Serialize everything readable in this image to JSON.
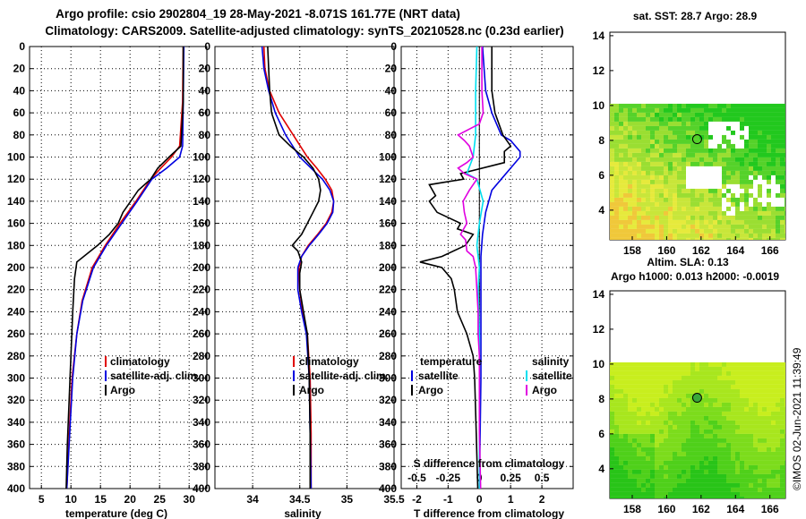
{
  "title": {
    "line1": "Argo profile: csio 2902804_19 28-May-2021 -8.071S 161.77E (NRT data)",
    "line2": "Climatology: CARS2009. Satellite-adjusted climatology: synTS_20210528.nc (0.23d earlier)"
  },
  "colors": {
    "climatology": "#e00000",
    "satellite": "#0000e0",
    "argo": "#000000",
    "sat_salinity": "#00e0f0",
    "argo_salinity": "#e000e0"
  },
  "chart_data": [
    {
      "type": "line",
      "id": "temperature",
      "xlabel": "temperature (deg C)",
      "ylabel": "",
      "xlim": [
        3,
        33
      ],
      "ylim": [
        400,
        0
      ],
      "xticks": [
        5,
        10,
        15,
        20,
        25,
        30
      ],
      "yticks": [
        0,
        20,
        40,
        60,
        80,
        100,
        120,
        140,
        160,
        180,
        200,
        220,
        240,
        260,
        280,
        300,
        320,
        340,
        360,
        380,
        400
      ],
      "legend": [
        "climatology",
        "satellite-adj. clim.",
        "Argo"
      ],
      "legend_position": "lower-right",
      "series": [
        {
          "name": "climatology",
          "color": "#e00000",
          "depth": [
            0,
            50,
            90,
            100,
            110,
            120,
            140,
            160,
            180,
            200,
            230,
            260,
            300,
            340,
            400
          ],
          "values": [
            29.0,
            28.9,
            28.4,
            27.0,
            25.2,
            23.5,
            21.0,
            18.3,
            15.8,
            13.6,
            11.9,
            11.0,
            10.2,
            9.8,
            9.3
          ]
        },
        {
          "name": "satellite-adj. clim.",
          "color": "#0000e0",
          "depth": [
            0,
            50,
            90,
            100,
            110,
            120,
            140,
            160,
            180,
            200,
            230,
            260,
            300,
            340,
            400
          ],
          "values": [
            29.1,
            29.0,
            28.9,
            28.4,
            26.2,
            23.7,
            21.2,
            18.6,
            16.0,
            13.8,
            12.0,
            11.0,
            10.3,
            9.9,
            9.3
          ]
        },
        {
          "name": "Argo",
          "color": "#000000",
          "depth": [
            0,
            50,
            90,
            100,
            110,
            120,
            130,
            140,
            150,
            160,
            170,
            180,
            195,
            210,
            240,
            280,
            320,
            360,
            400
          ],
          "values": [
            29.0,
            29.0,
            28.6,
            26.6,
            24.7,
            23.5,
            21.4,
            20.1,
            18.8,
            18.0,
            16.5,
            14.5,
            11.0,
            10.6,
            10.3,
            10.0,
            9.7,
            9.4,
            9.2
          ]
        }
      ]
    },
    {
      "type": "line",
      "id": "salinity",
      "xlabel": "salinity",
      "ylabel": "",
      "xlim": [
        33.6,
        35.5
      ],
      "ylim": [
        400,
        0
      ],
      "xticks": [
        34,
        34.5,
        35,
        35.5
      ],
      "yticks": [
        0,
        20,
        40,
        60,
        80,
        100,
        120,
        140,
        160,
        180,
        200,
        220,
        240,
        260,
        280,
        300,
        320,
        340,
        360,
        380,
        400
      ],
      "legend": [
        "climatology",
        "satellite-adj. clim.",
        "Argo"
      ],
      "legend_position": "lower-right",
      "series": [
        {
          "name": "climatology",
          "color": "#e00000",
          "depth": [
            0,
            20,
            40,
            60,
            80,
            100,
            110,
            120,
            130,
            140,
            150,
            160,
            170,
            180,
            190,
            200,
            220,
            240,
            260,
            300,
            350,
            400
          ],
          "values": [
            34.12,
            34.13,
            34.18,
            34.28,
            34.43,
            34.58,
            34.68,
            34.77,
            34.84,
            34.86,
            34.84,
            34.78,
            34.69,
            34.59,
            34.52,
            34.49,
            34.5,
            34.53,
            34.58,
            34.61,
            34.62,
            34.62
          ]
        },
        {
          "name": "satellite-adj. clim.",
          "color": "#0000e0",
          "depth": [
            0,
            20,
            40,
            60,
            80,
            100,
            110,
            120,
            130,
            140,
            150,
            160,
            170,
            180,
            190,
            200,
            220,
            240,
            260,
            300,
            350,
            400
          ],
          "values": [
            34.1,
            34.12,
            34.17,
            34.24,
            34.35,
            34.5,
            34.62,
            34.74,
            34.82,
            34.86,
            34.85,
            34.79,
            34.7,
            34.6,
            34.52,
            34.48,
            34.48,
            34.52,
            34.57,
            34.6,
            34.61,
            34.62
          ]
        },
        {
          "name": "Argo",
          "color": "#000000",
          "depth": [
            0,
            20,
            40,
            60,
            80,
            90,
            100,
            110,
            120,
            130,
            140,
            150,
            160,
            170,
            180,
            185,
            195,
            205,
            220,
            240,
            260,
            300,
            350,
            400
          ],
          "values": [
            34.16,
            34.17,
            34.18,
            34.2,
            34.28,
            34.4,
            34.54,
            34.64,
            34.7,
            34.72,
            34.7,
            34.64,
            34.58,
            34.52,
            34.42,
            34.48,
            34.52,
            34.5,
            34.5,
            34.54,
            34.58,
            34.6,
            34.61,
            34.61
          ]
        }
      ]
    },
    {
      "type": "line",
      "id": "difference",
      "xlabel": "T difference from climatology",
      "top_axis_label": "S difference from climatology",
      "xlim": [
        -2.5,
        3
      ],
      "ylim": [
        400,
        0
      ],
      "xticks": [
        -2,
        -1,
        0,
        1,
        2
      ],
      "top_ticks": [
        -0.5,
        -0.25,
        0,
        0.25,
        0.5
      ],
      "yticks": [
        0,
        20,
        40,
        60,
        80,
        100,
        120,
        140,
        160,
        180,
        200,
        220,
        240,
        260,
        280,
        300,
        320,
        340,
        360,
        380,
        400
      ],
      "legend": [
        "temperature",
        "satellite",
        "Argo",
        "salinity",
        "satellite",
        "Argo"
      ],
      "legend_position": "lower",
      "series": [
        {
          "name": "temperature satellite",
          "color": "#0000e0",
          "depth": [
            0,
            40,
            60,
            80,
            85,
            95,
            100,
            110,
            120,
            130,
            150,
            170,
            190,
            210,
            250,
            300,
            400
          ],
          "values": [
            0.1,
            0.2,
            0.4,
            0.7,
            1.0,
            1.3,
            1.3,
            1.0,
            0.7,
            0.4,
            0.2,
            0.1,
            0.05,
            0.05,
            0.05,
            0.05,
            0.0
          ]
        },
        {
          "name": "temperature Argo",
          "color": "#000000",
          "depth": [
            0,
            40,
            60,
            80,
            90,
            95,
            105,
            115,
            120,
            125,
            135,
            140,
            150,
            160,
            165,
            170,
            180,
            190,
            195,
            200,
            210,
            220,
            240,
            260,
            280,
            300,
            350,
            400
          ],
          "values": [
            0.4,
            0.4,
            0.5,
            0.75,
            1.0,
            0.8,
            0.8,
            -0.6,
            -0.5,
            -1.6,
            -1.4,
            -1.6,
            -1.35,
            -0.6,
            -0.7,
            -0.2,
            -0.45,
            -1.2,
            -1.9,
            -1.2,
            -0.9,
            -0.8,
            -0.7,
            -0.4,
            -0.2,
            -0.15,
            -0.1,
            -0.05
          ]
        },
        {
          "name": "salinity satellite",
          "color": "#00e0f0",
          "depth": [
            0,
            40,
            80,
            100,
            115,
            120,
            140,
            160,
            180,
            200,
            220,
            260,
            300,
            350,
            400
          ],
          "values": [
            -0.02,
            -0.03,
            -0.03,
            -0.05,
            -0.1,
            -0.02,
            0.03,
            0.0,
            -0.02,
            0.0,
            -0.01,
            0.0,
            0.0,
            0.0,
            0.0
          ]
        },
        {
          "name": "salinity Argo",
          "color": "#e000e0",
          "depth": [
            0,
            40,
            60,
            70,
            80,
            85,
            90,
            100,
            105,
            110,
            115,
            120,
            130,
            140,
            150,
            160,
            170,
            175,
            185,
            190,
            200,
            220,
            240,
            260,
            280,
            300,
            320,
            350,
            400
          ],
          "values": [
            0.02,
            0.02,
            0.03,
            0.0,
            -0.17,
            -0.12,
            -0.08,
            -0.05,
            -0.1,
            -0.17,
            -0.12,
            -0.02,
            -0.08,
            -0.13,
            -0.12,
            -0.1,
            -0.15,
            -0.11,
            -0.1,
            -0.05,
            -0.03,
            -0.02,
            -0.01,
            -0.01,
            0.0,
            0.0,
            0.0,
            0.0,
            0.01
          ]
        }
      ]
    }
  ],
  "legend_labels": {
    "climatology": "climatology",
    "satellite_adj": "satellite-adj. clim.",
    "argo": "Argo",
    "temperature_heading": "temperature",
    "salinity_heading": "salinity",
    "satellite": "satellite"
  },
  "maps": {
    "sst": {
      "title": "sat. SST: 28.7 Argo: 28.9",
      "xticks": [
        "158",
        "160",
        "162",
        "164",
        "166"
      ],
      "yticks": [
        "14",
        "12",
        "10",
        "8",
        "6",
        "4"
      ],
      "float_lon": 161.77,
      "float_lat": 8.07
    },
    "ssh": {
      "title": "Argo h1000: 0.013 h2000: -0.0019",
      "subtitle": "Altim. SLA: 0.13",
      "xticks": [
        "158",
        "160",
        "162",
        "164",
        "166"
      ],
      "yticks": [
        "14",
        "12",
        "10",
        "8",
        "6",
        "4"
      ]
    }
  },
  "footer": {
    "credit": "©IMOS 02-Jun-2021 11:39:49"
  }
}
